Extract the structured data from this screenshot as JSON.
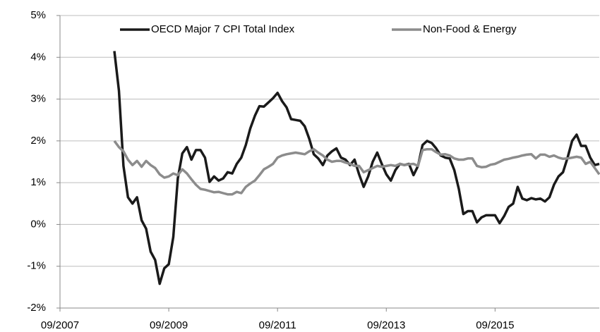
{
  "chart_data": {
    "type": "line",
    "x": [
      "09/2008",
      "10/2008",
      "11/2008",
      "12/2008",
      "01/2009",
      "02/2009",
      "03/2009",
      "04/2009",
      "05/2009",
      "06/2009",
      "07/2009",
      "08/2009",
      "09/2009",
      "10/2009",
      "11/2009",
      "12/2009",
      "01/2010",
      "02/2010",
      "03/2010",
      "04/2010",
      "05/2010",
      "06/2010",
      "07/2010",
      "08/2010",
      "09/2010",
      "10/2010",
      "11/2010",
      "12/2010",
      "01/2011",
      "02/2011",
      "03/2011",
      "04/2011",
      "05/2011",
      "06/2011",
      "07/2011",
      "08/2011",
      "09/2011",
      "10/2011",
      "11/2011",
      "12/2011",
      "01/2012",
      "02/2012",
      "03/2012",
      "04/2012",
      "05/2012",
      "06/2012",
      "07/2012",
      "08/2012",
      "09/2012",
      "10/2012",
      "11/2012",
      "12/2012",
      "01/2013",
      "02/2013",
      "03/2013",
      "04/2013",
      "05/2013",
      "06/2013",
      "07/2013",
      "08/2013",
      "09/2013",
      "10/2013",
      "11/2013",
      "12/2013",
      "01/2014",
      "02/2014",
      "03/2014",
      "04/2014",
      "05/2014",
      "06/2014",
      "07/2014",
      "08/2014",
      "09/2014",
      "10/2014",
      "11/2014",
      "12/2014",
      "01/2015",
      "02/2015",
      "03/2015",
      "04/2015",
      "05/2015",
      "06/2015",
      "07/2015",
      "08/2015",
      "09/2015",
      "10/2015",
      "11/2015",
      "12/2015",
      "01/2016",
      "02/2016",
      "03/2016",
      "04/2016",
      "05/2016",
      "06/2016",
      "07/2016",
      "08/2016",
      "09/2016",
      "10/2016",
      "11/2016",
      "12/2016",
      "01/2017",
      "02/2017",
      "03/2017",
      "04/2017",
      "05/2017",
      "06/2017",
      "07/2017",
      "08/2017"
    ],
    "series": [
      {
        "name": "OECD Major 7 CPI Total Index",
        "color": "#1a1a1a",
        "values": [
          4.15,
          3.2,
          1.4,
          0.65,
          0.5,
          0.65,
          0.1,
          -0.1,
          -0.65,
          -0.85,
          -1.42,
          -1.05,
          -0.95,
          -0.3,
          1.1,
          1.7,
          1.85,
          1.55,
          1.78,
          1.78,
          1.6,
          1.02,
          1.15,
          1.05,
          1.1,
          1.25,
          1.22,
          1.45,
          1.6,
          1.9,
          2.3,
          2.6,
          2.83,
          2.82,
          2.92,
          3.02,
          3.15,
          2.95,
          2.8,
          2.52,
          2.5,
          2.48,
          2.35,
          2.05,
          1.68,
          1.58,
          1.42,
          1.65,
          1.75,
          1.82,
          1.6,
          1.55,
          1.42,
          1.55,
          1.2,
          0.9,
          1.15,
          1.5,
          1.72,
          1.45,
          1.2,
          1.05,
          1.3,
          1.45,
          1.42,
          1.45,
          1.18,
          1.4,
          1.9,
          2.0,
          1.95,
          1.82,
          1.65,
          1.6,
          1.58,
          1.3,
          0.85,
          0.25,
          0.32,
          0.32,
          0.05,
          0.17,
          0.22,
          0.22,
          0.22,
          0.03,
          0.2,
          0.42,
          0.5,
          0.9,
          0.62,
          0.58,
          0.63,
          0.6,
          0.62,
          0.55,
          0.65,
          0.95,
          1.15,
          1.25,
          1.6,
          2.0,
          2.15,
          1.88,
          1.88,
          1.6,
          1.42,
          1.45
        ]
      },
      {
        "name": "Non-Food & Energy",
        "color": "#8c8c8c",
        "values": [
          2.0,
          1.85,
          1.75,
          1.55,
          1.42,
          1.52,
          1.38,
          1.52,
          1.42,
          1.35,
          1.2,
          1.12,
          1.15,
          1.22,
          1.18,
          1.32,
          1.22,
          1.08,
          0.95,
          0.85,
          0.83,
          0.8,
          0.77,
          0.78,
          0.75,
          0.72,
          0.72,
          0.78,
          0.75,
          0.9,
          0.98,
          1.05,
          1.18,
          1.32,
          1.38,
          1.45,
          1.6,
          1.65,
          1.68,
          1.7,
          1.72,
          1.7,
          1.68,
          1.75,
          1.8,
          1.72,
          1.65,
          1.55,
          1.5,
          1.52,
          1.52,
          1.48,
          1.45,
          1.4,
          1.4,
          1.25,
          1.3,
          1.35,
          1.4,
          1.38,
          1.4,
          1.42,
          1.4,
          1.45,
          1.42,
          1.44,
          1.45,
          1.4,
          1.78,
          1.8,
          1.8,
          1.73,
          1.67,
          1.68,
          1.65,
          1.58,
          1.55,
          1.55,
          1.58,
          1.58,
          1.4,
          1.37,
          1.38,
          1.43,
          1.45,
          1.5,
          1.55,
          1.57,
          1.6,
          1.62,
          1.65,
          1.67,
          1.68,
          1.58,
          1.67,
          1.67,
          1.62,
          1.65,
          1.6,
          1.57,
          1.58,
          1.6,
          1.62,
          1.6,
          1.45,
          1.5,
          1.35,
          1.2
        ]
      }
    ],
    "xlim": [
      "09/2007",
      "08/2017"
    ],
    "xticks": [
      "09/2007",
      "09/2009",
      "09/2011",
      "09/2013",
      "09/2015"
    ],
    "ylim": [
      -2,
      5
    ],
    "yticks": [
      {
        "value": -2,
        "label": "-2%"
      },
      {
        "value": -1,
        "label": "-1%"
      },
      {
        "value": 0,
        "label": "0%"
      },
      {
        "value": 1,
        "label": "1%"
      },
      {
        "value": 2,
        "label": "2%"
      },
      {
        "value": 3,
        "label": "3%"
      },
      {
        "value": 4,
        "label": "4%"
      },
      {
        "value": 5,
        "label": "5%"
      }
    ],
    "grid": true,
    "legend": "top"
  }
}
